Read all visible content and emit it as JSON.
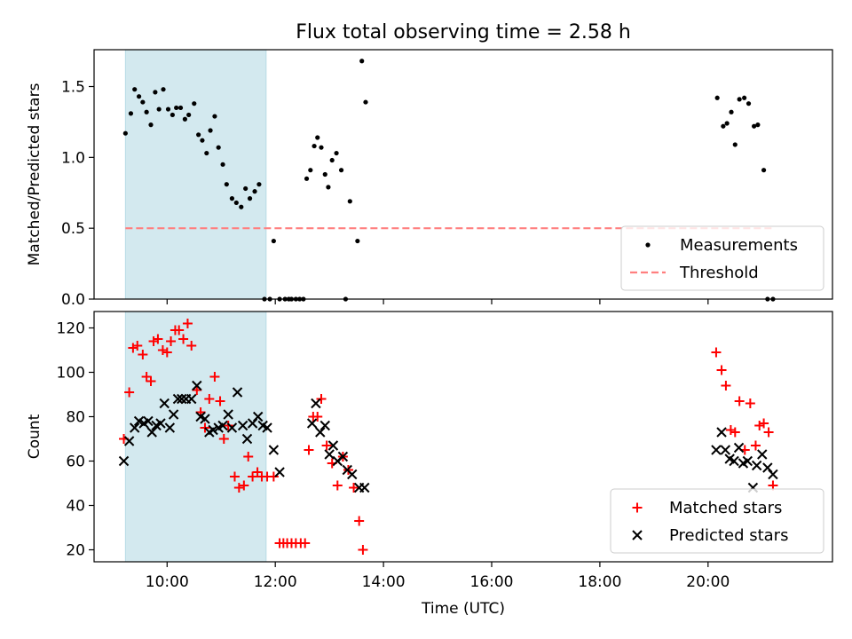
{
  "chart_data": {
    "type": "scatter",
    "title": "Flux total observing time = 2.58 h",
    "xlabel": "Time (UTC)",
    "x_unit": "hours UTC",
    "xlim": [
      8.65,
      22.3
    ],
    "xticks": [
      10,
      12,
      14,
      16,
      18,
      20
    ],
    "xtick_labels": [
      "10:00",
      "12:00",
      "14:00",
      "16:00",
      "18:00",
      "20:00"
    ],
    "highlight_band": {
      "x": [
        9.23,
        11.83
      ],
      "color": "#d3e9ef"
    },
    "colors": {
      "measurements": "#000000",
      "threshold": "#ff7f7f",
      "matched": "#ff0000",
      "predicted": "#000000"
    },
    "top": {
      "ylabel": "Matched/Predicted stars",
      "ylim": [
        0,
        1.76
      ],
      "yticks": [
        0.0,
        0.5,
        1.0,
        1.5
      ],
      "ytick_labels": [
        "0.0",
        "0.5",
        "1.0",
        "1.5"
      ],
      "legend_position": "lower right",
      "series": [
        {
          "name": "Measurements",
          "marker": "dot",
          "x": [
            9.23,
            9.33,
            9.4,
            9.48,
            9.55,
            9.62,
            9.7,
            9.78,
            9.85,
            9.93,
            10.02,
            10.1,
            10.17,
            10.25,
            10.33,
            10.4,
            10.5,
            10.58,
            10.65,
            10.73,
            10.8,
            10.88,
            10.95,
            11.03,
            11.1,
            11.2,
            11.28,
            11.37,
            11.45,
            11.53,
            11.62,
            11.7,
            11.8,
            11.9,
            11.97,
            12.08,
            12.18,
            12.25,
            12.3,
            12.38,
            12.45,
            12.52,
            12.58,
            12.65,
            12.72,
            12.78,
            12.85,
            12.92,
            12.98,
            13.05,
            13.13,
            13.22,
            13.3,
            13.38,
            13.52,
            13.6,
            13.67,
            20.17,
            20.28,
            20.35,
            20.43,
            20.5,
            20.58,
            20.67,
            20.75,
            20.85,
            20.92,
            21.03,
            21.1,
            21.2
          ],
          "y": [
            1.17,
            1.31,
            1.48,
            1.43,
            1.39,
            1.32,
            1.23,
            1.46,
            1.34,
            1.48,
            1.34,
            1.3,
            1.35,
            1.35,
            1.27,
            1.3,
            1.38,
            1.16,
            1.12,
            1.03,
            1.19,
            1.29,
            1.07,
            0.95,
            0.81,
            0.71,
            0.68,
            0.65,
            0.78,
            0.71,
            0.76,
            0.81,
            0.0,
            0.0,
            0.41,
            0.0,
            0.0,
            0.0,
            0.0,
            0.0,
            0.0,
            0.0,
            0.85,
            0.91,
            1.08,
            1.14,
            1.07,
            0.88,
            0.79,
            0.98,
            1.03,
            0.91,
            0.0,
            0.69,
            0.41,
            1.68,
            1.39,
            1.42,
            1.22,
            1.24,
            1.32,
            1.09,
            1.41,
            1.42,
            1.38,
            1.22,
            1.23,
            0.91,
            0,
            0
          ]
        },
        {
          "name": "Threshold",
          "marker": "dashed-line",
          "x": [
            9.23,
            21.2
          ],
          "y": [
            0.5,
            0.5
          ]
        }
      ]
    },
    "bottom": {
      "ylabel": "Count",
      "ylim": [
        14.6,
        127.4
      ],
      "yticks": [
        20,
        40,
        60,
        80,
        100,
        120
      ],
      "ytick_labels": [
        "20",
        "40",
        "60",
        "80",
        "100",
        "120"
      ],
      "legend_position": "lower right",
      "series": [
        {
          "name": "Matched stars",
          "marker": "plus",
          "x": [
            9.2,
            9.3,
            9.37,
            9.45,
            9.55,
            9.62,
            9.7,
            9.75,
            9.83,
            9.92,
            10.0,
            10.07,
            10.15,
            10.22,
            10.3,
            10.38,
            10.45,
            10.55,
            10.62,
            10.7,
            10.78,
            10.88,
            10.98,
            11.05,
            11.13,
            11.25,
            11.33,
            11.42,
            11.5,
            11.58,
            11.67,
            11.75,
            11.85,
            11.97,
            12.08,
            12.15,
            12.22,
            12.3,
            12.38,
            12.47,
            12.55,
            12.62,
            12.7,
            12.78,
            12.85,
            12.95,
            13.05,
            13.15,
            13.25,
            13.35,
            13.45,
            13.55,
            13.62,
            20.15,
            20.25,
            20.33,
            20.42,
            20.5,
            20.58,
            20.68,
            20.78,
            20.88,
            20.95,
            21.03,
            21.12,
            21.2
          ],
          "y": [
            70,
            91,
            111,
            112,
            108,
            98,
            96,
            114,
            115,
            110,
            109,
            114,
            119,
            119,
            115,
            122,
            112,
            92,
            82,
            75,
            88,
            98,
            87,
            70,
            76,
            53,
            48,
            49,
            62,
            53,
            55,
            53,
            53,
            53,
            23,
            23,
            23,
            23,
            23,
            23,
            23,
            65,
            80,
            80,
            88,
            67,
            59,
            49,
            62,
            56,
            48,
            33,
            20,
            109,
            101,
            94,
            74,
            73,
            87,
            65,
            86,
            67,
            76,
            77,
            73,
            49
          ]
        },
        {
          "name": "Predicted stars",
          "marker": "x",
          "x": [
            9.2,
            9.3,
            9.4,
            9.48,
            9.57,
            9.65,
            9.72,
            9.8,
            9.88,
            9.95,
            10.05,
            10.12,
            10.2,
            10.27,
            10.35,
            10.45,
            10.55,
            10.62,
            10.7,
            10.78,
            10.85,
            10.95,
            11.03,
            11.13,
            11.2,
            11.3,
            11.4,
            11.48,
            11.58,
            11.68,
            11.77,
            11.85,
            11.97,
            12.08,
            12.68,
            12.75,
            12.83,
            12.92,
            13.0,
            13.07,
            13.15,
            13.25,
            13.33,
            13.42,
            13.55,
            13.65,
            20.15,
            20.25,
            20.32,
            20.4,
            20.48,
            20.57,
            20.65,
            20.73,
            20.83,
            20.9,
            21.0,
            21.1,
            21.2
          ],
          "y": [
            60,
            69,
            75,
            78,
            77,
            78,
            73,
            76,
            77,
            86,
            75,
            81,
            88,
            88,
            88,
            88,
            94,
            80,
            79,
            73,
            74,
            75,
            76,
            81,
            75,
            91,
            76,
            70,
            77,
            80,
            76,
            75,
            65,
            55,
            77,
            86,
            73,
            76,
            63,
            67,
            60,
            62,
            56,
            54,
            48,
            48,
            65,
            73,
            65,
            61,
            60,
            66,
            59,
            60,
            48,
            58,
            63,
            57,
            54
          ]
        }
      ]
    }
  }
}
